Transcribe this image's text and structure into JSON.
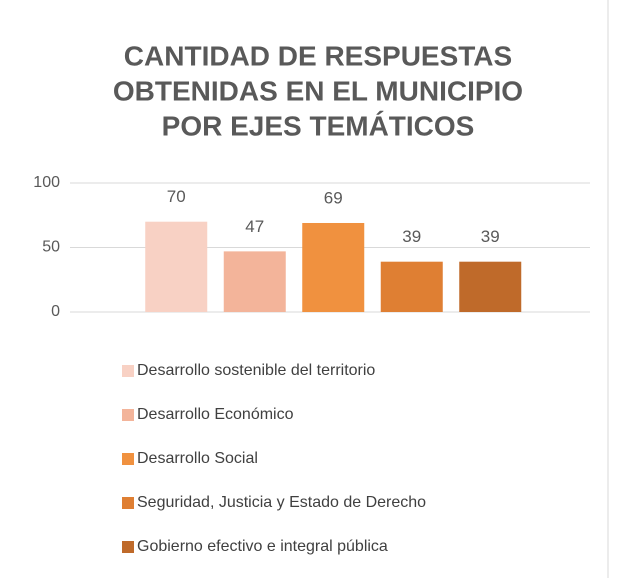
{
  "chart_data": {
    "type": "bar",
    "title": [
      "CANTIDAD DE RESPUESTAS",
      "OBTENIDAS  EN EL MUNICIPIO",
      "POR EJES TEMÁTICOS"
    ],
    "series": [
      {
        "name": "Desarrollo sostenible del territorio",
        "color": "#f8d1c4",
        "values": [
          70
        ]
      },
      {
        "name": "Desarrollo Económico",
        "color": "#f3b49a",
        "values": [
          47
        ]
      },
      {
        "name": "Desarrollo Social",
        "color": "#f0913f",
        "values": [
          69
        ]
      },
      {
        "name": "Seguridad, Justicia y Estado de Derecho",
        "color": "#df7f33",
        "values": [
          39
        ]
      },
      {
        "name": "Gobierno efectivo e integral pública",
        "color": "#bf6a2a",
        "values": [
          39
        ]
      }
    ],
    "ylim": [
      0,
      100
    ],
    "yticks": [
      0,
      50,
      100
    ],
    "grid": true,
    "legend": "bottom"
  }
}
